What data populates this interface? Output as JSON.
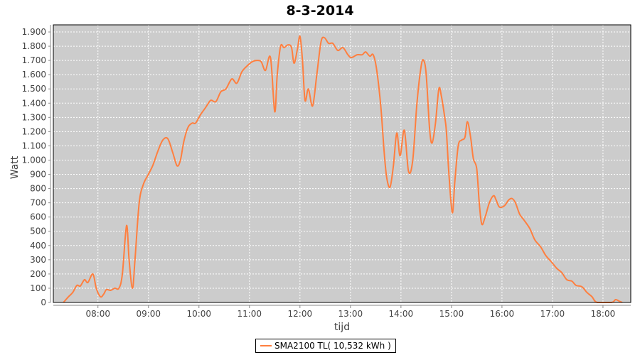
{
  "chart_data": {
    "type": "line",
    "title": "8-3-2014",
    "xlabel": "tijd",
    "ylabel": "Watt",
    "xlim": [
      "07:07",
      "18:33"
    ],
    "ylim": [
      0,
      1950
    ],
    "x_ticks": [
      "08:00",
      "09:00",
      "10:00",
      "11:00",
      "12:00",
      "13:00",
      "14:00",
      "15:00",
      "16:00",
      "17:00",
      "18:00"
    ],
    "y_ticks": [
      0,
      100,
      200,
      300,
      400,
      500,
      600,
      700,
      800,
      900,
      1000,
      1100,
      1200,
      1300,
      1400,
      1500,
      1600,
      1700,
      1800,
      1900
    ],
    "y_tick_labels": [
      "0",
      "100",
      "200",
      "300",
      "400",
      "500",
      "600",
      "700",
      "800",
      "900",
      "1.000",
      "1.100",
      "1.200",
      "1.300",
      "1.400",
      "1.500",
      "1.600",
      "1.700",
      "1.800",
      "1.900"
    ],
    "grid": true,
    "background": "#cccccc",
    "legend_placement": "bottom",
    "series": [
      {
        "name": "SMA2100 TL( 10,532 kWh )",
        "color": "#ff7f3f",
        "x": [
          "07:19",
          "07:25",
          "07:30",
          "07:35",
          "07:39",
          "07:44",
          "07:48",
          "07:54",
          "07:58",
          "08:03",
          "08:07",
          "08:10",
          "08:15",
          "08:20",
          "08:25",
          "08:29",
          "08:34",
          "08:37",
          "08:41",
          "08:44",
          "08:49",
          "08:54",
          "08:59",
          "09:05",
          "09:11",
          "09:17",
          "09:23",
          "09:29",
          "09:34",
          "09:38",
          "09:42",
          "09:47",
          "09:52",
          "09:56",
          "10:02",
          "10:08",
          "10:14",
          "10:20",
          "10:26",
          "10:32",
          "10:39",
          "10:45",
          "10:51",
          "10:57",
          "11:03",
          "11:09",
          "11:14",
          "11:19",
          "11:25",
          "11:30",
          "11:33",
          "11:37",
          "11:41",
          "11:46",
          "11:50",
          "11:53",
          "11:57",
          "12:00",
          "12:03",
          "12:06",
          "12:10",
          "12:15",
          "12:20",
          "12:25",
          "12:29",
          "12:34",
          "12:39",
          "12:45",
          "12:51",
          "12:57",
          "13:01",
          "13:08",
          "13:14",
          "13:18",
          "13:23",
          "13:27",
          "13:31",
          "13:36",
          "13:40",
          "13:43",
          "13:47",
          "13:51",
          "13:55",
          "13:59",
          "14:04",
          "14:09",
          "14:14",
          "14:19",
          "14:24",
          "14:27",
          "14:30",
          "14:34",
          "14:37",
          "14:41",
          "14:45",
          "14:48",
          "14:52",
          "14:54",
          "14:57",
          "15:01",
          "15:04",
          "15:08",
          "15:12",
          "15:16",
          "15:19",
          "15:23",
          "15:26",
          "15:30",
          "15:33",
          "15:36",
          "15:40",
          "15:45",
          "15:50",
          "15:53",
          "15:57",
          "16:03",
          "16:08",
          "16:12",
          "16:16",
          "16:21",
          "16:26",
          "16:33",
          "16:39",
          "16:46",
          "16:52",
          "16:58",
          "17:05",
          "17:11",
          "17:17",
          "17:23",
          "17:28",
          "17:35",
          "17:41",
          "17:47",
          "17:53",
          "18:10",
          "18:15",
          "18:19",
          "18:23"
        ],
        "values": [
          0,
          40,
          70,
          120,
          115,
          160,
          140,
          200,
          100,
          40,
          60,
          90,
          85,
          100,
          100,
          200,
          540,
          300,
          100,
          300,
          700,
          830,
          890,
          960,
          1060,
          1140,
          1150,
          1050,
          960,
          1000,
          1130,
          1230,
          1260,
          1260,
          1320,
          1370,
          1420,
          1410,
          1480,
          1500,
          1570,
          1540,
          1620,
          1660,
          1690,
          1700,
          1690,
          1630,
          1720,
          1340,
          1600,
          1800,
          1790,
          1810,
          1790,
          1680,
          1780,
          1870,
          1700,
          1420,
          1500,
          1380,
          1600,
          1830,
          1860,
          1820,
          1820,
          1770,
          1790,
          1740,
          1720,
          1740,
          1740,
          1760,
          1730,
          1740,
          1640,
          1380,
          1060,
          880,
          810,
          960,
          1190,
          1030,
          1210,
          920,
          1000,
          1400,
          1660,
          1700,
          1600,
          1220,
          1120,
          1260,
          1500,
          1450,
          1300,
          1200,
          900,
          630,
          850,
          1100,
          1140,
          1160,
          1270,
          1150,
          1010,
          940,
          700,
          550,
          600,
          700,
          750,
          720,
          670,
          680,
          720,
          730,
          700,
          620,
          580,
          520,
          440,
          390,
          330,
          290,
          240,
          210,
          160,
          150,
          120,
          110,
          70,
          40,
          0,
          0,
          20,
          10,
          0
        ]
      }
    ]
  }
}
